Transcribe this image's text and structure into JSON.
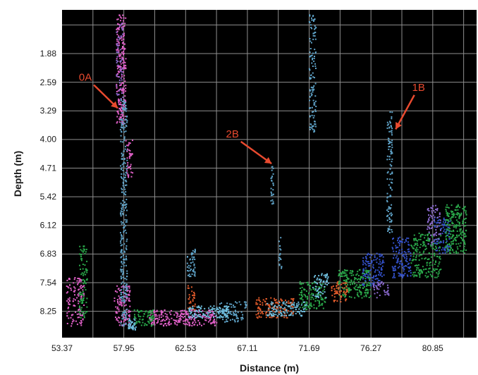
{
  "chart_data": {
    "type": "scatter",
    "xlabel": "Distance (m)",
    "ylabel": "Depth (m)",
    "x_ticks": [
      53.37,
      57.95,
      62.53,
      67.11,
      71.69,
      76.27,
      80.85
    ],
    "y_ticks": [
      1.88,
      2.59,
      3.29,
      4.0,
      4.71,
      5.42,
      6.12,
      6.83,
      7.54,
      8.25
    ],
    "xlim": [
      53.37,
      84.1
    ],
    "ylim": [
      0.8,
      8.9
    ],
    "grid": true,
    "background": "#000000",
    "grid_color": "#8f8f8f",
    "annotations": [
      {
        "label": "0A",
        "text_x": 55.1,
        "text_y": 2.55,
        "arrow_to_x": 57.5,
        "arrow_to_y": 3.23
      },
      {
        "label": "2B",
        "text_x": 66.0,
        "text_y": 3.95,
        "arrow_to_x": 68.9,
        "arrow_to_y": 4.6
      },
      {
        "label": "1B",
        "text_x": 79.8,
        "text_y": 2.8,
        "arrow_to_x": 78.1,
        "arrow_to_y": 3.75
      }
    ],
    "annotation_color": "#e84a2f",
    "series": [
      {
        "color": "#e060c8",
        "clusters": [
          {
            "x": 57.7,
            "y0": 0.9,
            "y1": 3.6,
            "w": 0.7,
            "n": 220
          },
          {
            "x": 57.8,
            "y0": 7.6,
            "y1": 8.6,
            "w": 1.2,
            "n": 120
          },
          {
            "x": 62.3,
            "y0": 8.2,
            "y1": 8.6,
            "w": 5,
            "n": 260
          },
          {
            "x": 54.3,
            "y0": 7.4,
            "y1": 8.6,
            "w": 1.3,
            "n": 120
          },
          {
            "x": 58.3,
            "y0": 4.0,
            "y1": 5.0,
            "w": 0.5,
            "n": 40
          }
        ]
      },
      {
        "color": "#5fa3c8",
        "clusters": [
          {
            "x": 57.9,
            "y0": 3.0,
            "y1": 8.6,
            "w": 0.5,
            "n": 280
          },
          {
            "x": 71.9,
            "y0": 0.9,
            "y1": 3.8,
            "w": 0.5,
            "n": 120
          },
          {
            "x": 77.6,
            "y0": 3.3,
            "y1": 6.3,
            "w": 0.4,
            "n": 110
          },
          {
            "x": 68.9,
            "y0": 4.55,
            "y1": 5.6,
            "w": 0.2,
            "n": 25
          },
          {
            "x": 69.5,
            "y0": 6.4,
            "y1": 7.2,
            "w": 0.2,
            "n": 20
          },
          {
            "x": 62.9,
            "y0": 6.7,
            "y1": 7.4,
            "w": 0.6,
            "n": 50
          },
          {
            "x": 66.0,
            "y0": 8.0,
            "y1": 8.5,
            "w": 2,
            "n": 80
          }
        ]
      },
      {
        "color": "#2aa84a",
        "clusters": [
          {
            "x": 54.9,
            "y0": 6.6,
            "y1": 8.4,
            "w": 0.6,
            "n": 90
          },
          {
            "x": 80.3,
            "y0": 6.3,
            "y1": 7.4,
            "w": 2.2,
            "n": 200
          },
          {
            "x": 82.5,
            "y0": 5.6,
            "y1": 6.8,
            "w": 1.6,
            "n": 220
          },
          {
            "x": 75.0,
            "y0": 7.2,
            "y1": 7.9,
            "w": 2.4,
            "n": 200
          },
          {
            "x": 71.9,
            "y0": 7.5,
            "y1": 8.2,
            "w": 2,
            "n": 120
          },
          {
            "x": 59.4,
            "y0": 8.2,
            "y1": 8.6,
            "w": 1.5,
            "n": 70
          }
        ]
      },
      {
        "color": "#3350c8",
        "clusters": [
          {
            "x": 78.5,
            "y0": 6.4,
            "y1": 7.4,
            "w": 1.4,
            "n": 130
          },
          {
            "x": 76.4,
            "y0": 6.8,
            "y1": 7.6,
            "w": 1.6,
            "n": 120
          },
          {
            "x": 81.5,
            "y0": 5.9,
            "y1": 6.8,
            "w": 1.2,
            "n": 80
          }
        ]
      },
      {
        "color": "#e05a2a",
        "clusters": [
          {
            "x": 69.1,
            "y0": 7.9,
            "y1": 8.4,
            "w": 2.8,
            "n": 130
          },
          {
            "x": 73.9,
            "y0": 7.5,
            "y1": 8.0,
            "w": 1.2,
            "n": 60
          },
          {
            "x": 62.9,
            "y0": 7.6,
            "y1": 8.2,
            "w": 0.6,
            "n": 30
          }
        ]
      },
      {
        "color": "#70c0e0",
        "clusters": [
          {
            "x": 64.2,
            "y0": 8.1,
            "y1": 8.4,
            "w": 3,
            "n": 120
          },
          {
            "x": 70.0,
            "y0": 8.0,
            "y1": 8.35,
            "w": 3,
            "n": 110
          },
          {
            "x": 72.5,
            "y0": 7.3,
            "y1": 7.9,
            "w": 1.2,
            "n": 60
          },
          {
            "x": 58.5,
            "y0": 8.4,
            "y1": 8.7,
            "w": 0.6,
            "n": 40
          }
        ]
      },
      {
        "color": "#8c6ad0",
        "clusters": [
          {
            "x": 80.9,
            "y0": 5.6,
            "y1": 6.6,
            "w": 1.0,
            "n": 70
          },
          {
            "x": 77.0,
            "y0": 7.5,
            "y1": 7.9,
            "w": 1.2,
            "n": 40
          },
          {
            "x": 57.6,
            "y0": 1.1,
            "y1": 3.0,
            "w": 0.5,
            "n": 50
          }
        ]
      }
    ]
  }
}
